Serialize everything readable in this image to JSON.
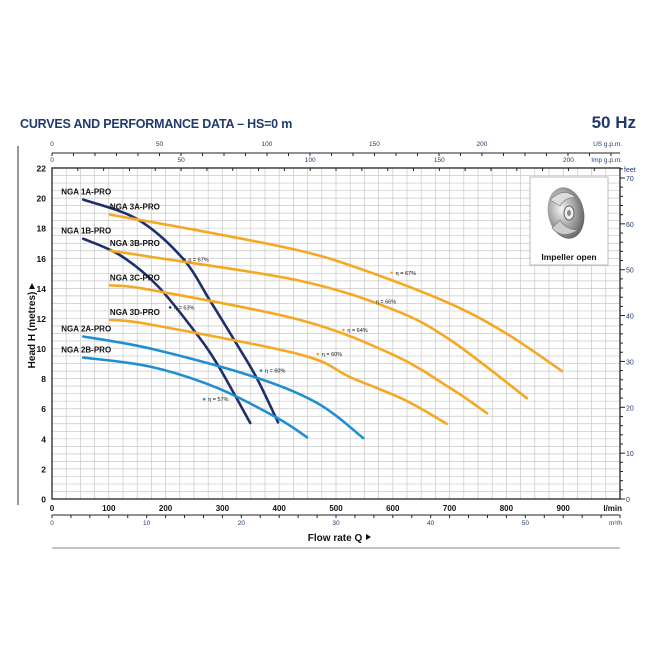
{
  "header": {
    "title": "CURVES AND PERFORMANCE DATA  –  HS=0 m",
    "frequency": "50 Hz"
  },
  "chart_data": {
    "type": "line",
    "title": "CURVES AND PERFORMANCE DATA – HS=0 m",
    "xlabel": "Flow rate Q",
    "ylabel": "Head H (metres)",
    "xlim": [
      0,
      1000
    ],
    "ylim": [
      0,
      22
    ],
    "x_unit": "l/min",
    "x_ticks": [
      0,
      100,
      200,
      300,
      400,
      500,
      600,
      700,
      800,
      900
    ],
    "y_ticks": [
      0,
      2,
      4,
      6,
      8,
      10,
      12,
      14,
      16,
      18,
      20,
      22
    ],
    "grid": true,
    "secondary_axes": {
      "us_gpm": {
        "label": "US g.p.m.",
        "ticks": [
          0,
          50,
          100,
          150,
          200
        ]
      },
      "imp_gpm": {
        "label": "Imp g.p.m.",
        "ticks": [
          0,
          50,
          100,
          150,
          200
        ]
      },
      "m3h": {
        "label": "m³/h",
        "ticks": [
          0,
          10,
          20,
          30,
          40,
          50
        ]
      },
      "feet": {
        "label": "feet",
        "ticks": [
          0,
          10,
          20,
          30,
          40,
          50,
          60,
          70
        ]
      }
    },
    "series": [
      {
        "name": "NGA 1A-PRO",
        "color": "#1f2f6e",
        "points": [
          [
            55,
            19.9
          ],
          [
            150,
            18.6
          ],
          [
            230,
            16.0
          ],
          [
            278,
            13.2
          ],
          [
            330,
            10.0
          ],
          [
            361,
            8.0
          ],
          [
            398,
            5.1
          ]
        ],
        "efficiency": {
          "label": "η = 67%",
          "at": [
            240,
            16.0
          ]
        }
      },
      {
        "name": "NGA 1B-PRO",
        "color": "#1f2f6e",
        "points": [
          [
            55,
            17.3
          ],
          [
            120,
            16.2
          ],
          [
            185,
            14.2
          ],
          [
            252,
            11.1
          ],
          [
            292,
            8.9
          ],
          [
            349,
            5.05
          ]
        ],
        "efficiency": {
          "label": "η = 63%",
          "at": [
            215,
            12.8
          ]
        }
      },
      {
        "name": "NGA 3A-PRO",
        "color": "#f7a823",
        "points": [
          [
            102,
            18.9
          ],
          [
            250,
            17.9
          ],
          [
            437,
            16.5
          ],
          [
            550,
            15.2
          ],
          [
            700,
            13.0
          ],
          [
            800,
            11.0
          ],
          [
            898,
            8.5
          ]
        ],
        "efficiency": {
          "label": "η = 67%",
          "at": [
            605,
            15.1
          ]
        }
      },
      {
        "name": "NGA 3B-PRO",
        "color": "#f7a823",
        "points": [
          [
            102,
            16.5
          ],
          [
            173,
            16.1
          ],
          [
            437,
            14.5
          ],
          [
            600,
            12.6
          ],
          [
            700,
            10.6
          ],
          [
            836,
            6.7
          ]
        ],
        "efficiency": {
          "label": "η = 66%",
          "at": [
            570,
            13.2
          ]
        }
      },
      {
        "name": "NGA 3C-PRO",
        "color": "#f7a823",
        "points": [
          [
            102,
            14.2
          ],
          [
            173,
            13.9
          ],
          [
            437,
            11.9
          ],
          [
            600,
            9.6
          ],
          [
            700,
            7.4
          ],
          [
            766,
            5.7
          ]
        ],
        "efficiency": {
          "label": "η = 64%",
          "at": [
            520,
            11.3
          ]
        }
      },
      {
        "name": "NGA 3D-PRO",
        "color": "#f7a823",
        "points": [
          [
            102,
            11.9
          ],
          [
            173,
            11.6
          ],
          [
            437,
            9.6
          ],
          [
            525,
            8.1
          ],
          [
            620,
            6.6
          ],
          [
            695,
            5.0
          ]
        ],
        "efficiency": {
          "label": "η = 60%",
          "at": [
            475,
            9.7
          ]
        }
      },
      {
        "name": "NGA 2A-PRO",
        "color": "#1e8fd2",
        "points": [
          [
            55,
            10.8
          ],
          [
            173,
            10.0
          ],
          [
            349,
            8.2
          ],
          [
            466,
            6.4
          ],
          [
            548,
            4.05
          ]
        ],
        "efficiency": {
          "label": "η = 60%",
          "at": [
            375,
            8.6
          ]
        }
      },
      {
        "name": "NGA 2B-PRO",
        "color": "#1e8fd2",
        "points": [
          [
            55,
            9.4
          ],
          [
            173,
            8.8
          ],
          [
            290,
            7.4
          ],
          [
            396,
            5.4
          ],
          [
            449,
            4.1
          ]
        ],
        "efficiency": {
          "label": "η = 57%",
          "at": [
            275,
            6.7
          ]
        }
      }
    ]
  },
  "inset": {
    "caption": "Impeller open"
  }
}
